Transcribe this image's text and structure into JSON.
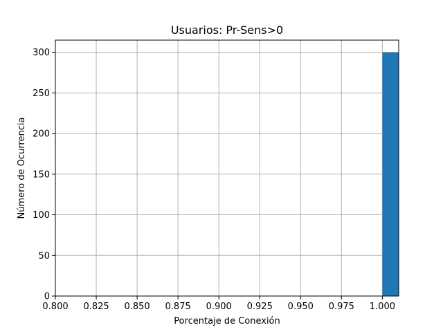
{
  "chart_data": {
    "type": "bar",
    "title": "Usuarios: Pr-Sens>0",
    "xlabel": "Porcentaje de Conexión",
    "ylabel": "Número de Ocurrencia",
    "xlim": [
      0.8,
      1.01
    ],
    "ylim": [
      0,
      315
    ],
    "xticks": [
      "0.800",
      "0.825",
      "0.850",
      "0.875",
      "0.900",
      "0.925",
      "0.950",
      "0.975",
      "1.000"
    ],
    "yticks": [
      "0",
      "50",
      "100",
      "150",
      "200",
      "250",
      "300"
    ],
    "bins": [
      {
        "x_start": 1.0,
        "x_end": 1.01,
        "count": 300
      }
    ],
    "grid": true,
    "bar_color": "#1f77b4",
    "grid_color": "#b0b0b0"
  }
}
